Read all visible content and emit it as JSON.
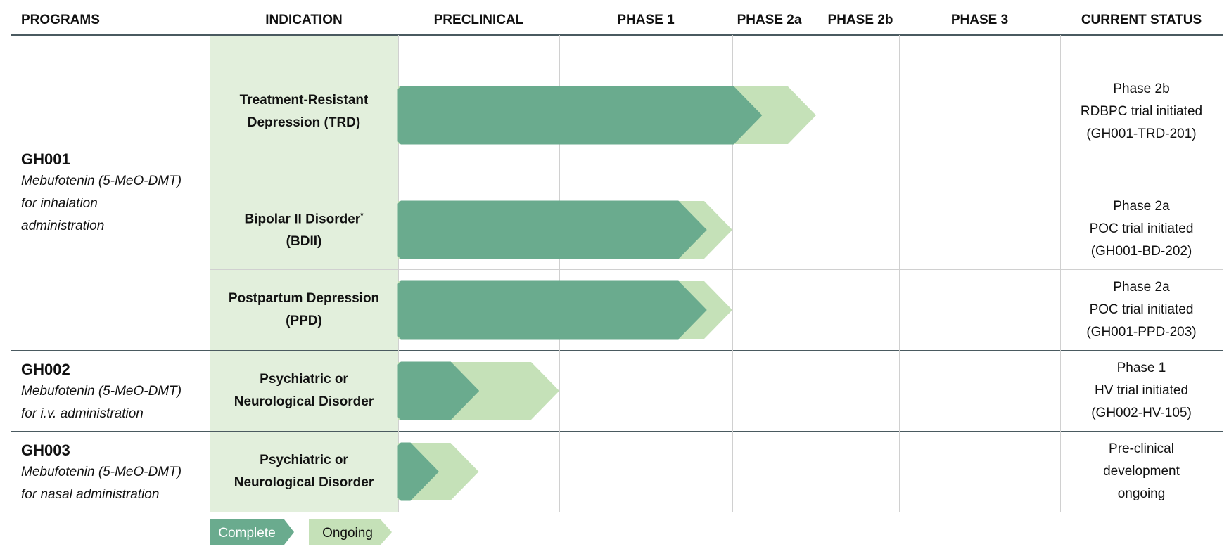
{
  "headers": {
    "programs": "PROGRAMS",
    "indication": "INDICATION",
    "preclinical": "PRECLINICAL",
    "phase1": "PHASE 1",
    "phase2a": "PHASE 2a",
    "phase2b": "PHASE 2b",
    "phase3": "PHASE 3",
    "current_status": "CURRENT STATUS"
  },
  "programs": [
    {
      "name": "GH001",
      "desc": [
        "Mebufotenin (5-MeO-DMT)",
        "for inhalation",
        "administration"
      ]
    },
    {
      "name": "GH002",
      "desc": [
        "Mebufotenin (5-MeO-DMT)",
        "for i.v. administration"
      ]
    },
    {
      "name": "GH003",
      "desc": [
        "Mebufotenin (5-MeO-DMT)",
        "for nasal administration"
      ]
    }
  ],
  "indications": [
    {
      "lines": [
        "Treatment-Resistant",
        "Depression (TRD)"
      ]
    },
    {
      "lines": [
        "Bipolar II Disorder",
        "(BDII)"
      ],
      "mark": "*"
    },
    {
      "lines": [
        "Postpartum Depression",
        "(PPD)"
      ]
    },
    {
      "lines": [
        "Psychiatric or",
        "Neurological Disorder"
      ]
    },
    {
      "lines": [
        "Psychiatric or",
        "Neurological Disorder"
      ]
    }
  ],
  "statuses": [
    [
      "Phase 2b",
      "RDBPC trial initiated",
      "(GH001-TRD-201)"
    ],
    [
      "Phase 2a",
      "POC trial initiated",
      "(GH001-BD-202)"
    ],
    [
      "Phase 2a",
      "POC trial initiated",
      "(GH001-PPD-203)"
    ],
    [
      "Phase 1",
      "HV trial initiated",
      "(GH002-HV-105)"
    ],
    [
      "Pre-clinical",
      "development",
      "ongoing"
    ]
  ],
  "colors": {
    "complete": "#6aab8e",
    "ongoing": "#c5e1b8",
    "indication_bg": "#e2efdc"
  },
  "legend": {
    "complete": "Complete",
    "ongoing": "Ongoing"
  },
  "chart_data": {
    "type": "bar",
    "title": "",
    "stages": [
      "PRECLINICAL",
      "PHASE 1",
      "PHASE 2a",
      "PHASE 2b",
      "PHASE 3"
    ],
    "rows": [
      "GH001 TRD",
      "GH001 BDII",
      "GH001 PPD",
      "GH002",
      "GH003"
    ],
    "series": [
      {
        "name": "Complete",
        "values": [
          2.35,
          1.85,
          1.85,
          0.5,
          0.25
        ]
      },
      {
        "name": "Ongoing",
        "values": [
          3.0,
          2.0,
          2.0,
          1.0,
          0.5
        ]
      }
    ],
    "xlim": [
      0,
      5
    ],
    "unit": "stage (0 = start of Preclinical, 5 = end of Phase 3)"
  }
}
